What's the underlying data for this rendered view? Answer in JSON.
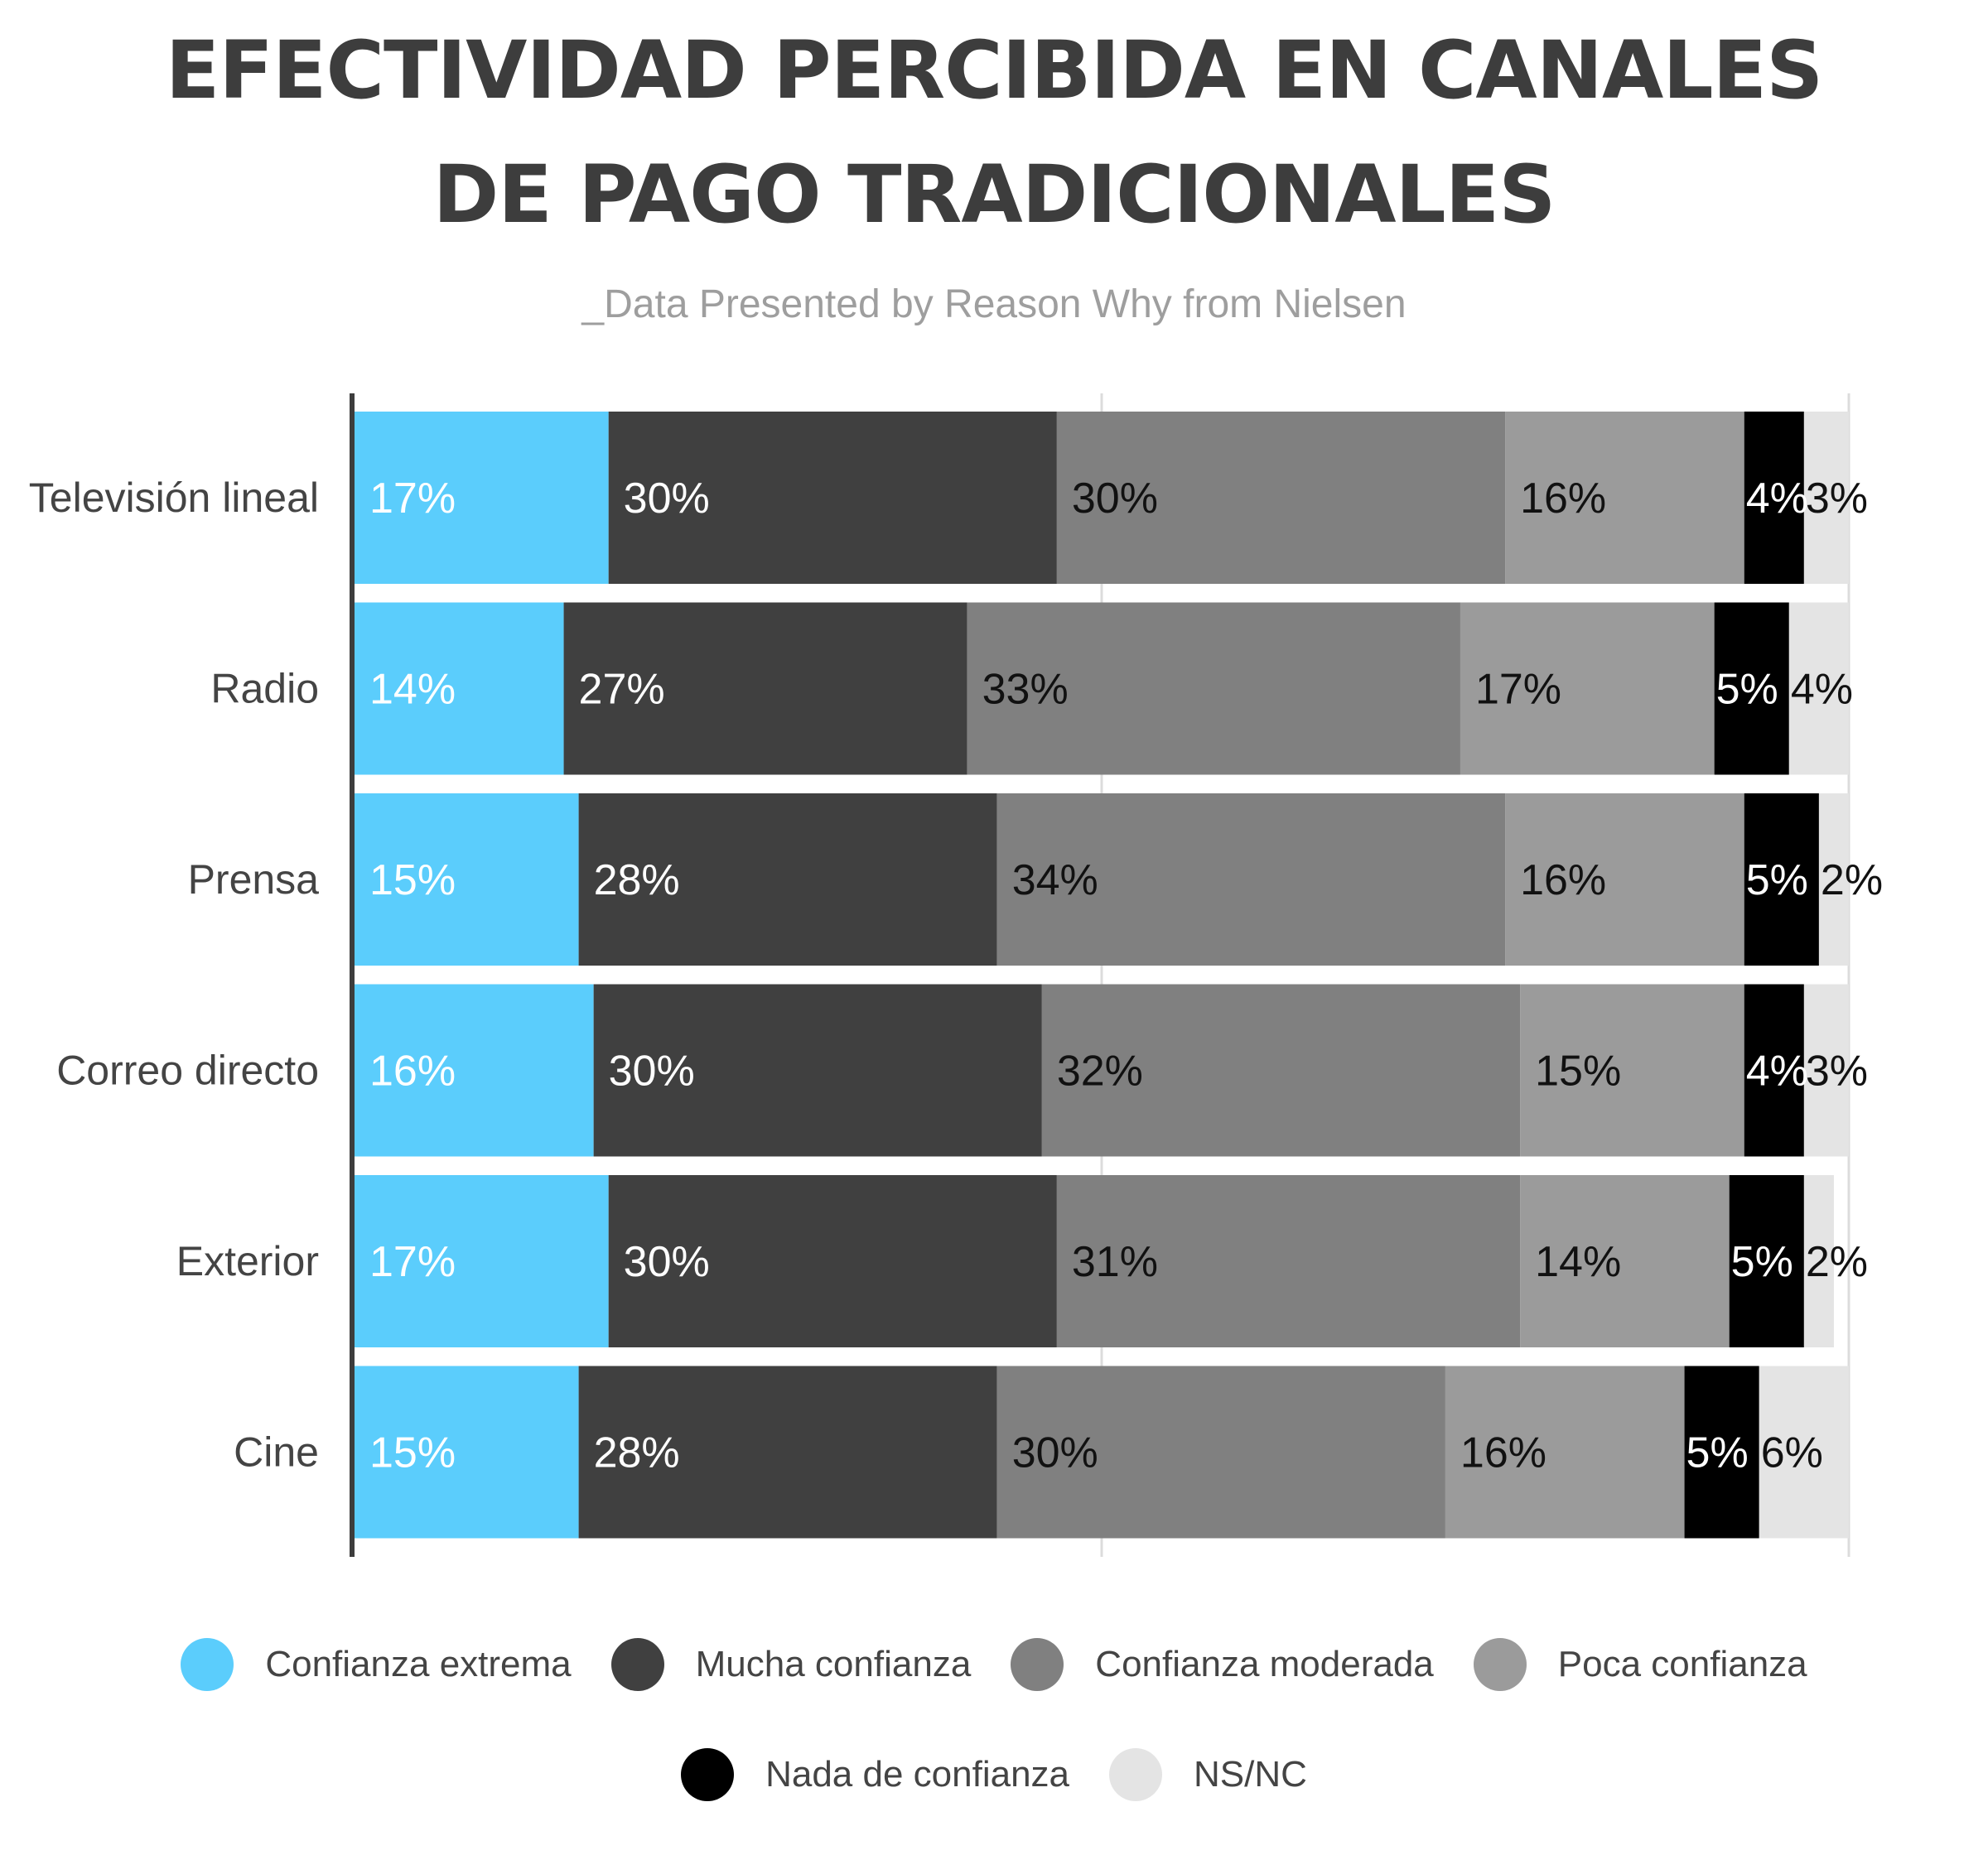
{
  "title": "EFECTIVIDAD PERCIBIDA EN CANALES DE PAGO TRADICIONALES",
  "subtitle": "_Data Presented by Reason Why from Nielsen",
  "colors": {
    "Confianza extrema": "#5bcdfc",
    "Mucha confianza": "#404040",
    "Confianza moderada": "#808080",
    "Poca confianza": "#9b9b9b",
    "Nada de confianza": "#000000",
    "NS/NC": "#e4e4e4"
  },
  "chart_data": {
    "type": "bar",
    "orientation": "horizontal",
    "stacked": true,
    "categories": [
      "Televisión lineal",
      "Radio",
      "Prensa",
      "Correo directo",
      "Exterior",
      "Cine"
    ],
    "series": [
      {
        "name": "Confianza extrema",
        "values": [
          17,
          14,
          15,
          16,
          17,
          15
        ]
      },
      {
        "name": "Mucha confianza",
        "values": [
          30,
          27,
          28,
          30,
          30,
          28
        ]
      },
      {
        "name": "Confianza moderada",
        "values": [
          30,
          33,
          34,
          32,
          31,
          30
        ]
      },
      {
        "name": "Poca confianza",
        "values": [
          16,
          17,
          16,
          15,
          14,
          16
        ]
      },
      {
        "name": "Nada de confianza",
        "values": [
          4,
          5,
          5,
          4,
          5,
          5
        ]
      },
      {
        "name": "NS/NC",
        "values": [
          3,
          4,
          2,
          3,
          2,
          6
        ]
      }
    ],
    "value_suffix": "%",
    "xlim": [
      0,
      100
    ],
    "grid": true,
    "legend_position": "bottom"
  }
}
